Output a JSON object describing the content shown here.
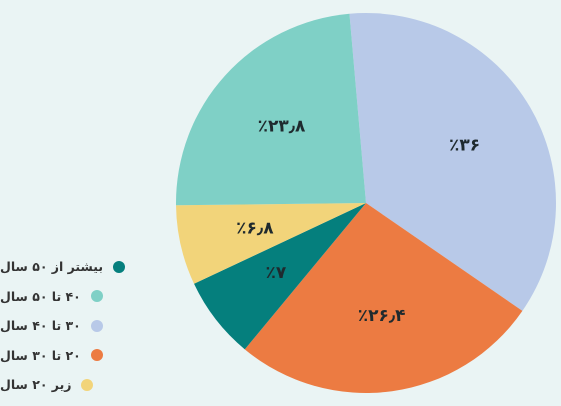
{
  "chart_data": {
    "type": "pie",
    "start_angle_deg": -5,
    "direction": "clockwise",
    "slices": [
      {
        "name": "۳۰ تا ۴۰ سال",
        "value": 36,
        "label": "٪۳۶",
        "color": "#b8c9e8"
      },
      {
        "name": "۲۰ تا ۳۰ سال",
        "value": 26.4,
        "label": "٪۲۶٫۴",
        "color": "#ec7b42"
      },
      {
        "name": "بیشتر از ۵۰ سال",
        "value": 7,
        "label": "٪۷",
        "color": "#057f7d"
      },
      {
        "name": "زیر ۲۰ سال",
        "value": 6.8,
        "label": "٪۶٫۸",
        "color": "#f2d47a"
      },
      {
        "name": "۴۰ تا ۵۰ سال",
        "value": 23.8,
        "label": "٪۲۳٫۸",
        "color": "#7fd0c6"
      }
    ]
  },
  "legend": {
    "placement": "bottom-left",
    "items": [
      {
        "label": "بیشتر از ۵۰ سال",
        "color": "#057f7d"
      },
      {
        "label": "۴۰ تا ۵۰ سال",
        "color": "#7fd0c6"
      },
      {
        "label": "۳۰ تا ۴۰ سال",
        "color": "#b8c9e8"
      },
      {
        "label": "۲۰ تا ۳۰ سال",
        "color": "#ec7b42"
      },
      {
        "label": "زیر ۲۰ سال",
        "color": "#f2d47a"
      }
    ]
  }
}
